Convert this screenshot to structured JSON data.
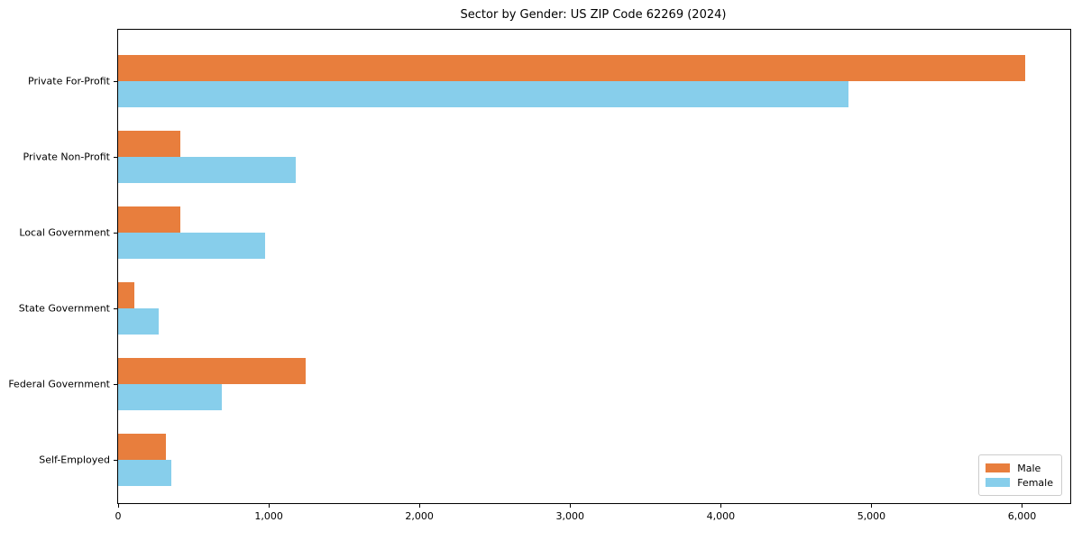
{
  "chart_data": {
    "type": "bar",
    "orientation": "horizontal",
    "title": "Sector by Gender: US ZIP Code 62269 (2024)",
    "xlabel": "",
    "ylabel": "",
    "categories": [
      "Private For-Profit",
      "Private Non-Profit",
      "Local Government",
      "State Government",
      "Federal Government",
      "Self-Employed"
    ],
    "series": [
      {
        "name": "Male",
        "color": "#e87e3d",
        "values": [
          6020,
          410,
          410,
          110,
          1245,
          315
        ]
      },
      {
        "name": "Female",
        "color": "#87ceeb",
        "values": [
          4845,
          1180,
          975,
          270,
          690,
          355
        ]
      }
    ],
    "xlim": [
      0,
      6320
    ],
    "xticks": {
      "values": [
        0,
        1000,
        2000,
        3000,
        4000,
        5000,
        6000
      ],
      "labels": [
        "0",
        "1,000",
        "2,000",
        "3,000",
        "4,000",
        "5,000",
        "6,000"
      ]
    },
    "grid": false,
    "legend": {
      "position": "lower right",
      "entries": [
        "Male",
        "Female"
      ]
    }
  },
  "colors": {
    "axis": "#000000",
    "background": "#ffffff",
    "legend_border": "#cccccc"
  }
}
